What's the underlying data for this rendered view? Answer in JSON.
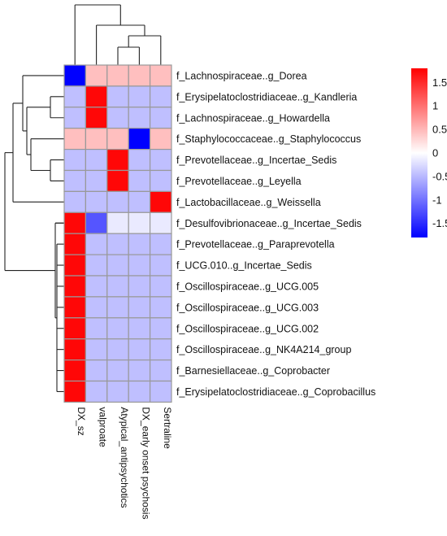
{
  "chart_data": {
    "type": "heatmap",
    "title": "",
    "columns": [
      "DX_sz",
      "valproate",
      "Atypical_antipsychotics",
      "DX_early onset psychosis",
      "Sertraline"
    ],
    "rows": [
      "f_Lachnospiraceae..g_Dorea",
      "f_Erysipelatoclostridiaceae..g_Kandleria",
      "f_Lachnospiraceae..g_Howardella",
      "f_Staphylococcaceae..g_Staphylococcus",
      "f_Prevotellaceae..g_Incertae_Sedis",
      "f_Prevotellaceae..g_Leyella",
      "f_Lactobacillaceae..g_Weissella",
      "f_Desulfovibrionaceae..g_Incertae_Sedis",
      "f_Prevotellaceae..g_Paraprevotella",
      "f_UCG.010..g_Incertae_Sedis",
      "f_Oscillospiraceae..g_UCG.005",
      "f_Oscillospiraceae..g_UCG.003",
      "f_Oscillospiraceae..g_UCG.002",
      "f_Oscillospiraceae..g_NK4A214_group",
      "f_Barnesiellaceae..g_Coprobacter",
      "f_Erysipelatoclostridiaceae..g_Coprobacillus"
    ],
    "values": [
      [
        -1.8,
        0.45,
        0.45,
        0.45,
        0.45
      ],
      [
        -0.45,
        1.75,
        -0.45,
        -0.45,
        -0.45
      ],
      [
        -0.45,
        1.75,
        -0.45,
        -0.45,
        -0.45
      ],
      [
        0.45,
        0.45,
        0.45,
        -1.8,
        0.45
      ],
      [
        -0.45,
        -0.45,
        1.75,
        -0.45,
        -0.45
      ],
      [
        -0.45,
        -0.45,
        1.75,
        -0.45,
        -0.45
      ],
      [
        -0.45,
        -0.45,
        -0.45,
        -0.45,
        1.75
      ],
      [
        1.75,
        -1.2,
        -0.15,
        -0.15,
        -0.15
      ],
      [
        1.75,
        -0.45,
        -0.45,
        -0.45,
        -0.45
      ],
      [
        1.75,
        -0.45,
        -0.45,
        -0.45,
        -0.45
      ],
      [
        1.75,
        -0.45,
        -0.45,
        -0.45,
        -0.45
      ],
      [
        1.75,
        -0.45,
        -0.45,
        -0.45,
        -0.45
      ],
      [
        1.75,
        -0.45,
        -0.45,
        -0.45,
        -0.45
      ],
      [
        1.75,
        -0.45,
        -0.45,
        -0.45,
        -0.45
      ],
      [
        1.75,
        -0.45,
        -0.45,
        -0.45,
        -0.45
      ],
      [
        1.75,
        -0.45,
        -0.45,
        -0.45,
        -0.45
      ]
    ],
    "color_scale": {
      "min": -1.8,
      "max": 1.8,
      "low": "#0000ff",
      "mid": "#ffffff",
      "high": "#ff0000"
    },
    "colorbar_ticks": [
      {
        "value": 1.5,
        "label": "1.5"
      },
      {
        "value": 1,
        "label": "1"
      },
      {
        "value": 0.5,
        "label": "0.5"
      },
      {
        "value": 0,
        "label": "0"
      },
      {
        "value": -0.5,
        "label": "-0.5"
      },
      {
        "value": -1,
        "label": "-1"
      },
      {
        "value": -1.5,
        "label": "-1.5"
      }
    ],
    "grid": true,
    "cell_border_color": "#999999",
    "row_dendrogram": true,
    "column_dendrogram": true,
    "legend_placement": "top-right"
  }
}
